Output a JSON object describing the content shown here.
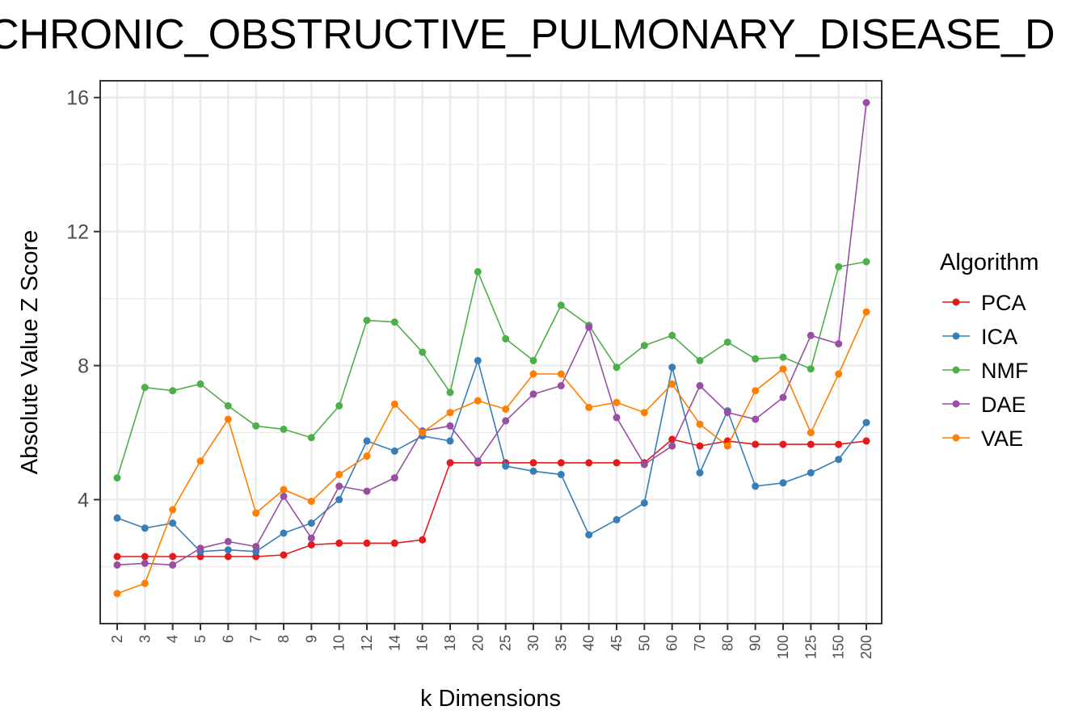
{
  "chart_data": {
    "type": "line",
    "title": "CHRONIC_OBSTRUCTIVE_PULMONARY_DISEASE_D",
    "xlabel": "k Dimensions",
    "ylabel": "Absolute Value Z Score",
    "categories": [
      "2",
      "3",
      "4",
      "5",
      "6",
      "7",
      "8",
      "9",
      "10",
      "12",
      "14",
      "16",
      "18",
      "20",
      "25",
      "30",
      "35",
      "40",
      "45",
      "50",
      "60",
      "70",
      "80",
      "90",
      "100",
      "125",
      "150",
      "200"
    ],
    "ylim": [
      0.3,
      16.5
    ],
    "yticks": [
      "4",
      "8",
      "12",
      "16"
    ],
    "grid": true,
    "legend": {
      "title": "Algorithm",
      "placement": "right"
    },
    "series": [
      {
        "name": "PCA",
        "color": "#E41A1C",
        "values": [
          2.3,
          2.3,
          2.3,
          2.3,
          2.3,
          2.3,
          2.35,
          2.65,
          2.7,
          2.7,
          2.7,
          2.8,
          5.1,
          5.1,
          5.1,
          5.1,
          5.1,
          5.1,
          5.1,
          5.1,
          5.8,
          5.6,
          5.75,
          5.65,
          5.65,
          5.65,
          5.65,
          5.75
        ]
      },
      {
        "name": "ICA",
        "color": "#377EB8",
        "values": [
          3.45,
          3.15,
          3.3,
          2.45,
          2.5,
          2.45,
          3.0,
          3.3,
          4.0,
          5.75,
          5.45,
          5.9,
          5.75,
          8.15,
          5.0,
          4.85,
          4.75,
          2.95,
          3.4,
          3.9,
          7.95,
          4.8,
          6.65,
          4.4,
          4.5,
          4.8,
          5.2,
          6.3
        ]
      },
      {
        "name": "NMF",
        "color": "#4DAF4A",
        "values": [
          4.65,
          7.35,
          7.25,
          7.45,
          6.8,
          6.2,
          6.1,
          5.85,
          6.8,
          9.35,
          9.3,
          8.4,
          7.2,
          10.8,
          8.8,
          8.15,
          9.8,
          9.2,
          7.95,
          8.6,
          8.9,
          8.15,
          8.7,
          8.2,
          8.25,
          7.9,
          10.95,
          11.1
        ]
      },
      {
        "name": "DAE",
        "color": "#984EA3",
        "values": [
          2.05,
          2.1,
          2.05,
          2.55,
          2.75,
          2.6,
          4.1,
          2.85,
          4.4,
          4.25,
          4.65,
          6.05,
          6.2,
          5.15,
          6.35,
          7.15,
          7.4,
          9.15,
          6.45,
          5.05,
          5.6,
          7.4,
          6.6,
          6.4,
          7.05,
          8.9,
          8.65,
          15.85
        ]
      },
      {
        "name": "VAE",
        "color": "#FF7F00",
        "values": [
          1.2,
          1.5,
          3.7,
          5.15,
          6.4,
          3.6,
          4.3,
          3.95,
          4.75,
          5.3,
          6.85,
          6.0,
          6.6,
          6.95,
          6.7,
          7.75,
          7.75,
          6.75,
          6.9,
          6.6,
          7.45,
          6.25,
          5.6,
          7.25,
          7.9,
          6.0,
          7.75,
          9.6
        ]
      }
    ]
  }
}
